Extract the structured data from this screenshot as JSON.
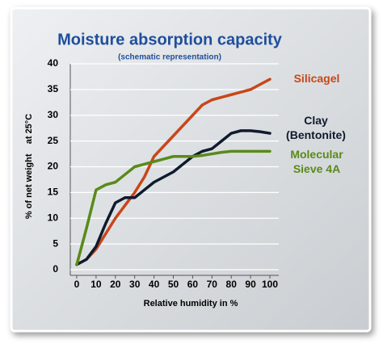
{
  "chart_data": {
    "type": "line",
    "title": "Moisture absorption capacity",
    "subtitle": "(schematic representation)",
    "x_label": "Relative humidity in %",
    "y_label": "% of net weight    at 25°C",
    "x": [
      0,
      5,
      10,
      15,
      20,
      25,
      30,
      35,
      40,
      45,
      50,
      55,
      60,
      65,
      70,
      75,
      80,
      85,
      90,
      95,
      100
    ],
    "series": [
      {
        "name": "Silicagel",
        "color": "#c8461a",
        "values": [
          1,
          2,
          4,
          7,
          10,
          12.5,
          15,
          18,
          22,
          24,
          26,
          28,
          30,
          32,
          33,
          33.5,
          34,
          34.5,
          35,
          36,
          37
        ]
      },
      {
        "name": "Clay (Bentonite)",
        "color": "#0f1a2e",
        "values": [
          1,
          2,
          4.5,
          9,
          13,
          14,
          14,
          15.5,
          17,
          18,
          19,
          20.5,
          22,
          23,
          23.5,
          25,
          26.5,
          27,
          27,
          26.8,
          26.5
        ]
      },
      {
        "name": "Molecular Sieve 4A",
        "color": "#5a8a1a",
        "values": [
          1,
          8,
          15.5,
          16.5,
          17,
          18.5,
          20,
          20.5,
          21,
          21.5,
          22,
          22,
          22,
          22.2,
          22.5,
          22.8,
          23,
          23,
          23,
          23,
          23
        ]
      }
    ],
    "xlim": [
      0,
      100
    ],
    "xticks": [
      0,
      10,
      20,
      30,
      40,
      50,
      60,
      70,
      80,
      90,
      100
    ],
    "ylim": [
      0,
      40
    ],
    "yticks": [
      0,
      5,
      10,
      15,
      20,
      25,
      30,
      35,
      40
    ],
    "grid": true
  }
}
